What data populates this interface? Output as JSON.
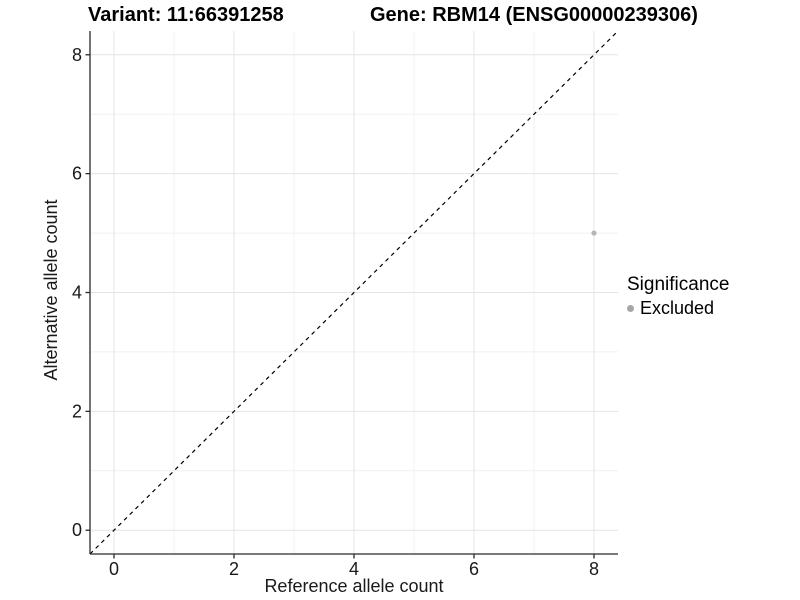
{
  "chart_data": {
    "type": "scatter",
    "title_left": "Variant: 11:66391258",
    "title_right": "Gene: RBM14 (ENSG00000239306)",
    "xlabel": "Reference allele count",
    "ylabel": "Alternative allele count",
    "xlim": [
      -0.4,
      8.4
    ],
    "ylim": [
      -0.4,
      8.4
    ],
    "x_ticks": [
      0,
      2,
      4,
      6,
      8
    ],
    "y_ticks": [
      0,
      2,
      4,
      6,
      8
    ],
    "x_minor_ticks": [
      1,
      3,
      5,
      7
    ],
    "y_minor_ticks": [
      1,
      3,
      5,
      7
    ],
    "grid": "on",
    "reference_line": {
      "kind": "identity",
      "style": "dashed"
    },
    "series": [
      {
        "name": "Excluded",
        "points": [
          {
            "x": 8,
            "y": 5
          }
        ]
      }
    ],
    "legend": {
      "title": "Significance",
      "position": "right",
      "items": [
        {
          "label": "Excluded",
          "color": "#a6a6a6"
        }
      ]
    },
    "colors": {
      "point": "#b5b5b5",
      "grid_major": "#e4e4e4",
      "grid_minor": "#f0f0f0",
      "axis": "#2a2a2a",
      "tick_text": "#1a1a1a",
      "reference_line": "#000000",
      "background": "#ffffff"
    }
  }
}
